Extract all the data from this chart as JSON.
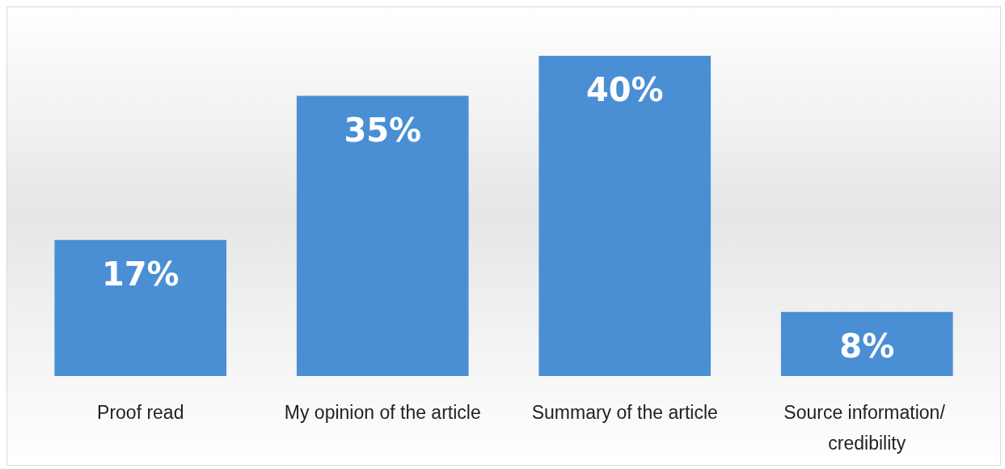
{
  "chart_data": {
    "type": "bar",
    "categories": [
      "Proof read",
      "My opinion of the article",
      "Summary of the article",
      "Source information/ credibility"
    ],
    "values": [
      17,
      35,
      40,
      8
    ],
    "value_labels": [
      "17%",
      "35%",
      "40%",
      "8%"
    ],
    "color": "#4a8fd4"
  }
}
